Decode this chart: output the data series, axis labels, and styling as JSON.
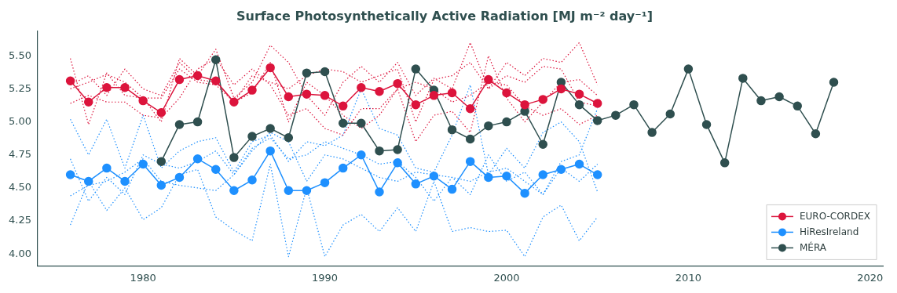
{
  "chart_data": {
    "type": "line",
    "title": "Surface Photosynthetically Active Radiation [MJ m⁻² day⁻¹]",
    "x": [
      1976,
      1977,
      1978,
      1979,
      1980,
      1981,
      1982,
      1983,
      1984,
      1985,
      1986,
      1987,
      1988,
      1989,
      1990,
      1991,
      1992,
      1993,
      1994,
      1995,
      1996,
      1997,
      1998,
      1999,
      2000,
      2001,
      2002,
      2003,
      2004,
      2005
    ],
    "xlim": [
      1974.2,
      2020.7
    ],
    "xticks": [
      1980,
      1990,
      2000,
      2010,
      2020
    ],
    "ylim": [
      3.91,
      5.69
    ],
    "yticks": [
      {
        "value": 4,
        "label": "4.00"
      },
      {
        "value": 4.25,
        "label": "4.25"
      },
      {
        "value": 4.5,
        "label": "4.50"
      },
      {
        "value": 4.75,
        "label": "4.75"
      },
      {
        "value": 5,
        "label": "5.00"
      },
      {
        "value": 5.25,
        "label": "5.25"
      },
      {
        "value": 5.5,
        "label": "5.50"
      }
    ],
    "grid": false,
    "legend": "bottom right",
    "series": [
      {
        "color": "#dc143c",
        "line_style": "dotted",
        "marker": "none",
        "values": [
          5.48,
          4.98,
          5.37,
          5.2,
          5.18,
          5.0,
          5.48,
          5.35,
          5.55,
          5.18,
          5.3,
          5.58,
          5.45,
          5.2,
          5.05,
          5.3,
          5.42,
          5.3,
          5.45,
          5.2,
          5.33,
          5.25,
          5.6,
          5.25,
          5.45,
          5.35,
          5.48,
          5.45,
          5.6,
          5.28
        ]
      },
      {
        "color": "#dc143c",
        "line_style": "dotted",
        "marker": "none",
        "values": [
          5.14,
          5.2,
          5.15,
          5.15,
          5.05,
          5.03,
          5.18,
          5.4,
          5.48,
          5.28,
          5.4,
          5.28,
          5.05,
          5.1,
          4.95,
          4.9,
          5.1,
          5.1,
          5.25,
          4.85,
          5.05,
          5.08,
          4.92,
          5.5,
          5.18,
          5.0,
          5.15,
          5.3,
          5.32,
          5.2
        ]
      },
      {
        "color": "#dc143c",
        "line_style": "dotted",
        "marker": "none",
        "values": [
          5.25,
          5.3,
          5.36,
          5.3,
          5.18,
          5.18,
          5.4,
          5.3,
          5.28,
          5.15,
          5.35,
          5.3,
          5.25,
          5.35,
          5.4,
          5.38,
          5.3,
          5.35,
          5.4,
          5.0,
          5.32,
          5.35,
          5.45,
          5.25,
          5.35,
          5.3,
          5.42,
          5.4,
          5.15,
          5.12
        ]
      },
      {
        "color": "#dc143c",
        "line_style": "dotted",
        "marker": "none",
        "values": [
          5.28,
          5.35,
          5.2,
          5.4,
          5.25,
          5.2,
          5.45,
          5.32,
          5.3,
          5.15,
          5.22,
          5.45,
          5.0,
          5.3,
          5.2,
          5.05,
          4.95,
          5.05,
          5.25,
          5.3,
          5.25,
          5.15,
          5.2,
          5.3,
          5.28,
          5.12,
          5.05,
          5.1,
          4.98,
          5.05
        ]
      },
      {
        "color": "#1e90ff",
        "line_style": "dotted",
        "marker": "none",
        "values": [
          5.02,
          4.75,
          5.02,
          4.65,
          5.05,
          4.65,
          4.78,
          4.85,
          4.88,
          4.62,
          4.85,
          4.9,
          4.7,
          4.85,
          4.82,
          4.9,
          5.25,
          4.95,
          4.9,
          4.65,
          4.62,
          4.9,
          5.28,
          4.6,
          4.8,
          4.65,
          4.92,
          5.0,
          4.85,
          4.47
        ]
      },
      {
        "color": "#1e90ff",
        "line_style": "dotted",
        "marker": "none",
        "values": [
          4.72,
          4.4,
          4.58,
          4.45,
          4.75,
          4.68,
          4.65,
          4.7,
          4.78,
          4.6,
          4.8,
          4.88,
          4.72,
          4.75,
          4.85,
          4.8,
          4.75,
          4.68,
          4.7,
          4.58,
          4.4,
          4.58,
          4.45,
          4.75,
          4.55,
          4.62,
          4.45,
          4.7,
          4.75,
          5.1
        ]
      },
      {
        "color": "#1e90ff",
        "line_style": "dotted",
        "marker": "none",
        "values": [
          4.44,
          4.52,
          4.55,
          4.62,
          4.72,
          4.55,
          4.52,
          4.5,
          4.48,
          4.6,
          4.78,
          4.92,
          4.85,
          4.55,
          4.75,
          4.72,
          4.65,
          4.58,
          4.55,
          4.62,
          4.6,
          4.58,
          4.55,
          4.62,
          4.65,
          4.55,
          4.45,
          4.65,
          4.55,
          4.68
        ]
      },
      {
        "color": "#1e90ff",
        "line_style": "dotted",
        "marker": "none",
        "values": [
          4.22,
          4.55,
          4.33,
          4.5,
          4.26,
          4.35,
          4.6,
          4.64,
          4.28,
          4.18,
          4.1,
          4.68,
          3.98,
          4.5,
          3.98,
          4.22,
          4.3,
          4.17,
          4.35,
          4.17,
          4.55,
          4.17,
          4.2,
          4.17,
          4.18,
          3.98,
          4.28,
          4.37,
          4.1,
          4.28
        ]
      },
      {
        "name": "EURO-CORDEX",
        "color": "#dc143c",
        "line_style": "solid",
        "marker": "circle",
        "values": [
          5.31,
          5.15,
          5.26,
          5.26,
          5.16,
          5.07,
          5.32,
          5.35,
          5.31,
          5.15,
          5.24,
          5.41,
          5.19,
          5.21,
          5.2,
          5.12,
          5.26,
          5.23,
          5.29,
          5.13,
          5.2,
          5.22,
          5.1,
          5.32,
          5.22,
          5.13,
          5.17,
          5.25,
          5.21,
          5.14
        ]
      },
      {
        "name": "HiResIreland",
        "color": "#1e90ff",
        "line_style": "solid",
        "marker": "circle",
        "values": [
          4.6,
          4.55,
          4.65,
          4.55,
          4.68,
          4.52,
          4.58,
          4.72,
          4.64,
          4.48,
          4.56,
          4.78,
          4.48,
          4.48,
          4.54,
          4.65,
          4.75,
          4.47,
          4.69,
          4.53,
          4.59,
          4.49,
          4.7,
          4.58,
          4.59,
          4.46,
          4.6,
          4.64,
          4.68,
          4.6
        ]
      },
      {
        "name": "MÉRA",
        "color": "#2f4f4f",
        "line_style": "solid",
        "marker": "circle",
        "x": [
          1981,
          1982,
          1983,
          1984,
          1985,
          1986,
          1987,
          1988,
          1989,
          1990,
          1991,
          1992,
          1993,
          1994,
          1995,
          1996,
          1997,
          1998,
          1999,
          2000,
          2001,
          2002,
          2003,
          2004,
          2005,
          2006,
          2007,
          2008,
          2009,
          2010,
          2011,
          2012,
          2013,
          2014,
          2015,
          2016,
          2017,
          2018
        ],
        "values": [
          4.7,
          4.98,
          5.0,
          5.47,
          4.73,
          4.89,
          4.95,
          4.88,
          5.37,
          5.38,
          4.99,
          4.99,
          4.78,
          4.79,
          5.4,
          5.24,
          4.94,
          4.87,
          4.97,
          5.0,
          5.08,
          4.83,
          5.3,
          5.13,
          5.01,
          5.05,
          5.13,
          4.92,
          5.06,
          5.4,
          4.98,
          4.69,
          5.33,
          5.16,
          5.19,
          5.12,
          4.91,
          5.3
        ]
      }
    ]
  }
}
